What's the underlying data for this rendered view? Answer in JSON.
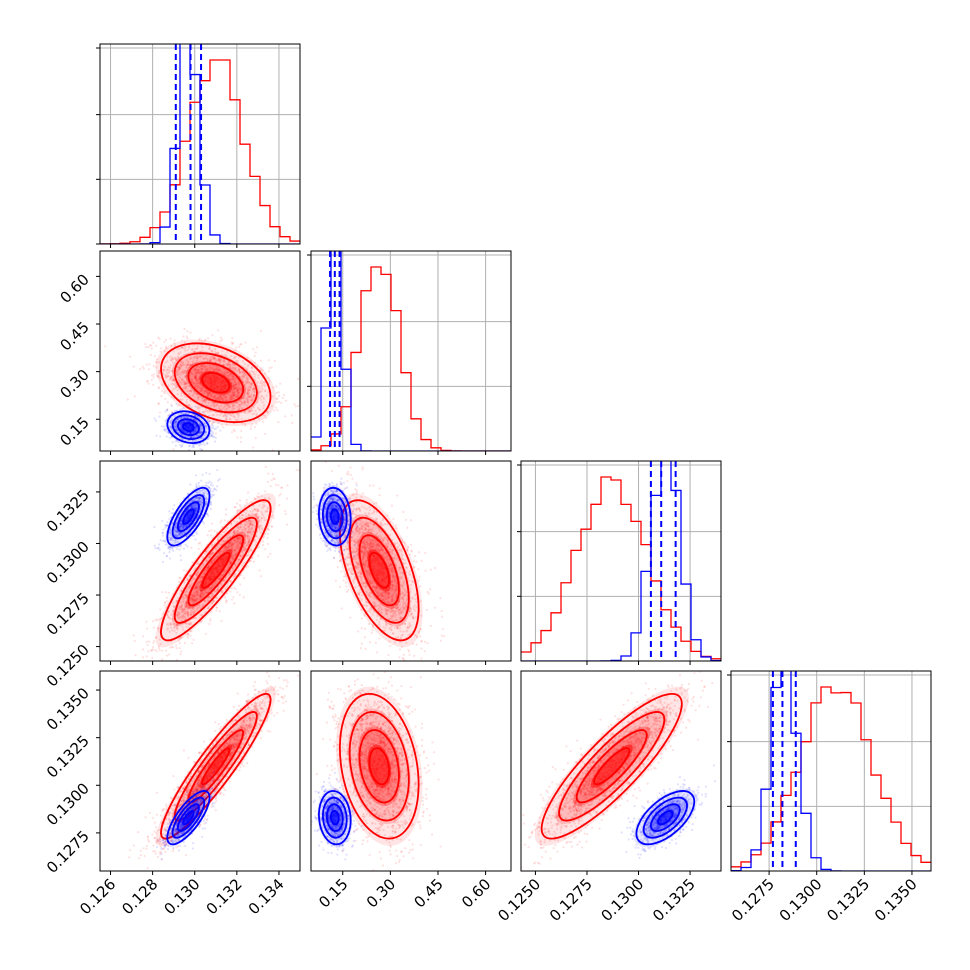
{
  "colors": {
    "red": "#ff0000",
    "blue": "#0000ff",
    "grid": "#b0b0b0"
  },
  "chart_data": {
    "type": "corner",
    "parameters": [
      {
        "ylim_hist": [
          0,
          1
        ],
        "range": [
          0.1255,
          0.135
        ],
        "ticks": [
          "0.126",
          "0.128",
          "0.130",
          "0.132",
          "0.134"
        ],
        "tick_values": [
          0.126,
          0.128,
          0.13,
          0.132,
          0.134
        ],
        "hist_grid": [
          0.33,
          0.66,
          1.0
        ]
      },
      {
        "range": [
          0.05,
          0.68
        ],
        "ticks": [
          "0.15",
          "0.30",
          "0.45",
          "0.60"
        ],
        "tick_values": [
          0.15,
          0.3,
          0.45,
          0.6
        ]
      },
      {
        "range": [
          0.1243,
          0.134
        ],
        "ticks": [
          "0.1250",
          "0.1275",
          "0.1300",
          "0.1325"
        ],
        "tick_values": [
          0.125,
          0.1275,
          0.13,
          0.1325
        ]
      },
      {
        "range": [
          0.1255,
          0.136
        ],
        "ticks": [
          "0.1275",
          "0.1300",
          "0.1325",
          "0.1350"
        ],
        "tick_values": [
          0.1275,
          0.13,
          0.1325,
          0.135
        ]
      }
    ],
    "series": [
      {
        "name": "red",
        "color": "#ff0000",
        "mean": [
          0.131,
          0.265,
          0.1287,
          0.131
        ],
        "std": [
          0.0013,
          0.062,
          0.0017,
          0.0019
        ],
        "corr": [
          [
            1,
            -0.35,
            0.88,
            0.92
          ],
          [
            -0.35,
            1,
            -0.55,
            -0.25
          ],
          [
            0.88,
            -0.55,
            1,
            0.86
          ],
          [
            0.92,
            -0.25,
            0.86,
            1
          ]
        ]
      },
      {
        "name": "blue",
        "color": "#0000ff",
        "mean": [
          0.1297,
          0.125,
          0.1313,
          0.1283
        ],
        "std": [
          0.0005,
          0.025,
          0.0007,
          0.0007
        ],
        "corr": [
          [
            1,
            -0.2,
            0.7,
            0.75
          ],
          [
            -0.2,
            1,
            -0.1,
            -0.1
          ],
          [
            0.7,
            -0.1,
            1,
            0.6
          ],
          [
            0.75,
            -0.1,
            0.6,
            1
          ]
        ]
      }
    ],
    "blue_quantiles": [
      [
        0.1291,
        0.1298,
        0.1303
      ],
      [
        0.11,
        0.125,
        0.14
      ],
      [
        0.1306,
        0.1311,
        0.1318
      ],
      [
        0.1277,
        0.1282,
        0.1289
      ]
    ]
  }
}
